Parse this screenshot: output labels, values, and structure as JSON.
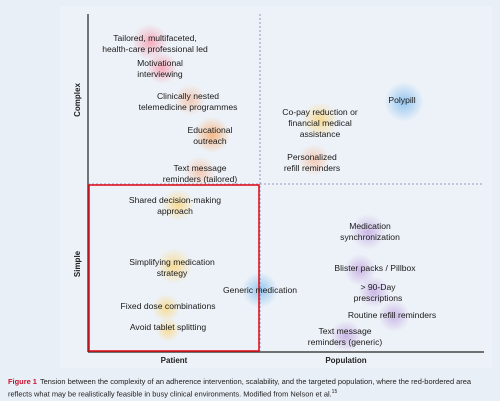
{
  "y_axis_labels": [
    "Complex",
    "Simple"
  ],
  "x_axis_labels": [
    "Patient",
    "Population"
  ],
  "items": [
    {
      "lines": [
        "Tailored, multifaceted,",
        "health-care professional led"
      ]
    },
    {
      "lines": [
        "Motivational",
        "interviewing"
      ]
    },
    {
      "lines": [
        "Clinically nested",
        "telemedicine programmes"
      ]
    },
    {
      "lines": [
        "Educational",
        "outreach"
      ]
    },
    {
      "lines": [
        "Text message",
        "reminders (tailored)"
      ]
    },
    {
      "lines": [
        "Co-pay reduction or",
        "financial medical",
        "assistance"
      ]
    },
    {
      "lines": [
        "Polypill"
      ]
    },
    {
      "lines": [
        "Personalized",
        "refill reminders"
      ]
    },
    {
      "lines": [
        "Shared decision-making",
        "approach"
      ]
    },
    {
      "lines": [
        "Simplifying medication",
        "strategy"
      ]
    },
    {
      "lines": [
        "Generic medication"
      ]
    },
    {
      "lines": [
        "Fixed dose combinations"
      ]
    },
    {
      "lines": [
        "Avoid tablet splitting"
      ]
    },
    {
      "lines": [
        "Medication",
        "synchronization"
      ]
    },
    {
      "lines": [
        "Blister packs / Pillbox"
      ]
    },
    {
      "lines": [
        "> 90-Day",
        "prescriptions"
      ]
    },
    {
      "lines": [
        "Routine refill reminders"
      ]
    },
    {
      "lines": [
        "Text message",
        "reminders (generic)"
      ]
    }
  ],
  "caption": {
    "label": "Figure 1",
    "text": "Tension between the complexity of an adherence intervention, scalability, and the targeted population, where the red-bordered area reflects what may be realistically feasible in busy clinical environments. Modified from Nelson et al.",
    "reference": "15"
  }
}
